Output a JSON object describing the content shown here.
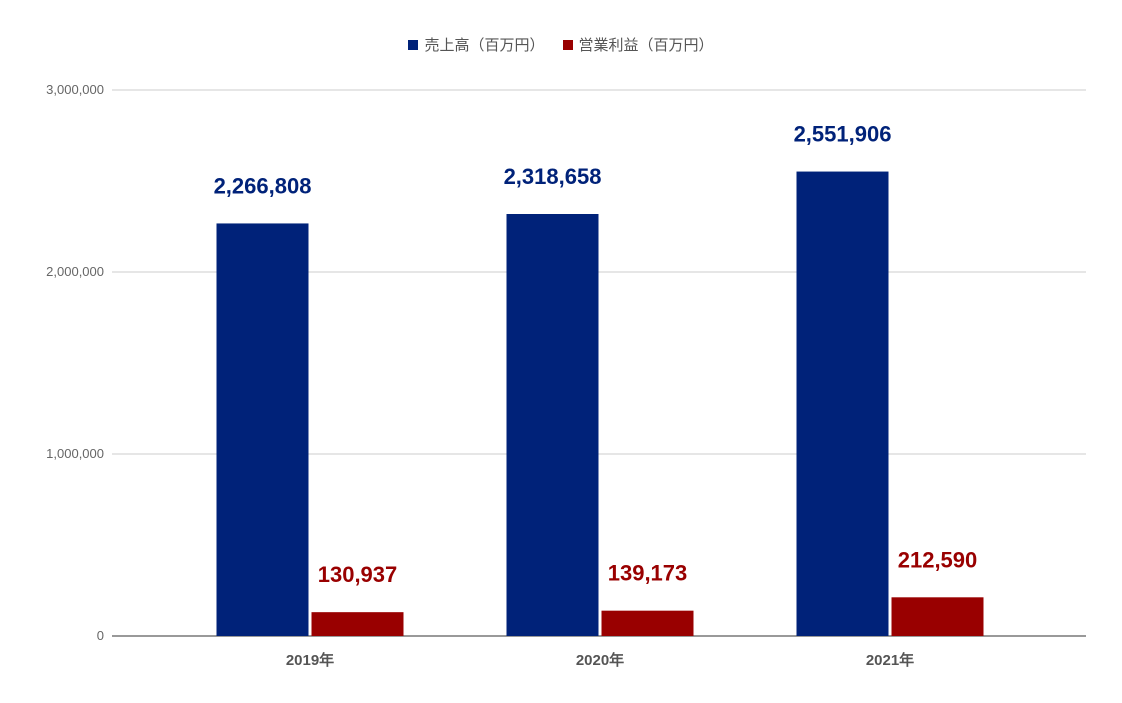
{
  "chart_data": {
    "type": "bar",
    "categories": [
      "2019年",
      "2020年",
      "2021年"
    ],
    "series": [
      {
        "name": "売上高（百万円）",
        "values": [
          2266808,
          2318658,
          2551906
        ],
        "labels": [
          "2,266,808",
          "2,318,658",
          "2,551,906"
        ],
        "color": "#002279"
      },
      {
        "name": "営業利益（百万円）",
        "values": [
          130937,
          139173,
          212590
        ],
        "labels": [
          "130,937",
          "139,173",
          "212,590"
        ],
        "color": "#990000"
      }
    ],
    "ylim": [
      0,
      3000000
    ],
    "yticks": [
      0,
      1000000,
      2000000,
      3000000
    ],
    "ytick_labels": [
      "0",
      "1,000,000",
      "2,000,000",
      "3,000,000"
    ],
    "grid": true,
    "legend_position": "top-center",
    "title": "",
    "xlabel": "",
    "ylabel": ""
  }
}
